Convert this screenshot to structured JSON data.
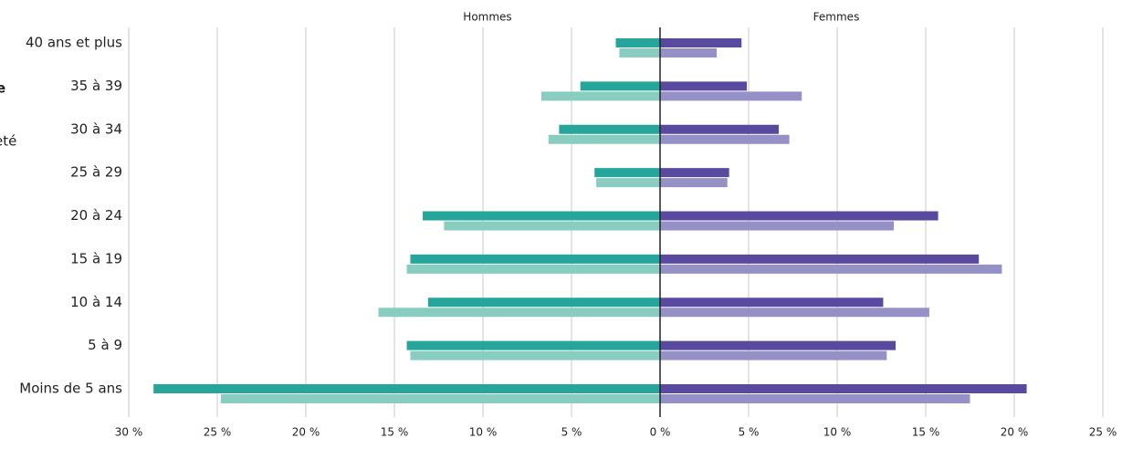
{
  "chart_data": {
    "type": "pyramid",
    "fragments": [
      "e",
      "eté"
    ],
    "left_label": "Hommes",
    "right_label": "Femmes",
    "categories": [
      "40 ans et plus",
      "35 à 39",
      "30 à 34",
      "25 à 29",
      "20 à 24",
      "15 à 19",
      "10 à 14",
      "5 à 9",
      "Moins de 5 ans"
    ],
    "series": [
      {
        "side": "left",
        "color": "#26a69a",
        "values": [
          -2.5,
          -4.5,
          -5.7,
          -3.7,
          -13.4,
          -14.1,
          -13.1,
          -14.3,
          -28.6
        ]
      },
      {
        "side": "left",
        "color": "#88cdc0",
        "values": [
          -2.3,
          -6.7,
          -6.3,
          -3.6,
          -12.2,
          -14.3,
          -15.9,
          -14.1,
          -24.8
        ]
      },
      {
        "side": "right",
        "color": "#594a9f",
        "values": [
          4.6,
          4.9,
          6.7,
          3.9,
          15.7,
          18.0,
          12.6,
          13.3,
          20.7
        ]
      },
      {
        "side": "right",
        "color": "#9590c6",
        "values": [
          3.2,
          8.0,
          7.3,
          3.8,
          13.2,
          19.3,
          15.2,
          12.8,
          17.5
        ]
      }
    ],
    "xlim": [
      -30,
      25
    ],
    "xticks": [
      {
        "value": -30,
        "label": "30 %"
      },
      {
        "value": -25,
        "label": "25 %"
      },
      {
        "value": -20,
        "label": "20 %"
      },
      {
        "value": -15,
        "label": "15 %"
      },
      {
        "value": -10,
        "label": "10 %"
      },
      {
        "value": -5,
        "label": "5 %"
      },
      {
        "value": 0,
        "label": "0 %"
      },
      {
        "value": 5,
        "label": "5 %"
      },
      {
        "value": 10,
        "label": "10 %"
      },
      {
        "value": 15,
        "label": "15 %"
      },
      {
        "value": 20,
        "label": "20 %"
      },
      {
        "value": 25,
        "label": "25 %"
      }
    ],
    "grid": true
  }
}
